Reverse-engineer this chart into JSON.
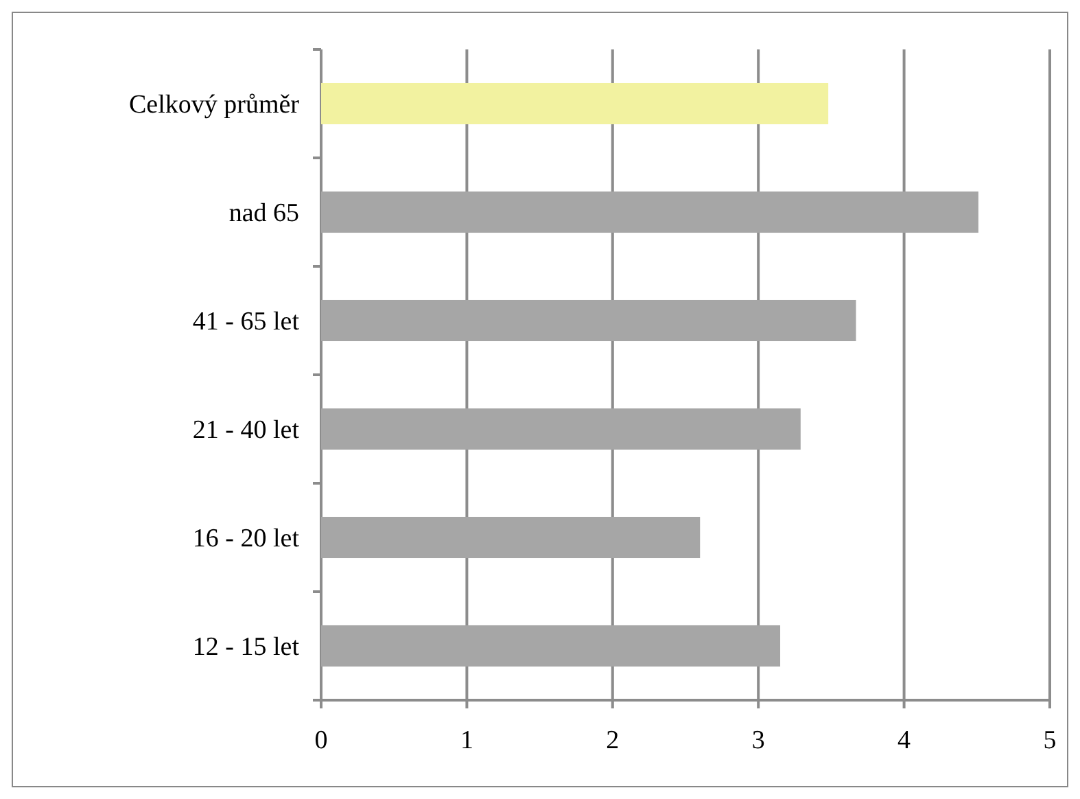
{
  "chart_data": {
    "type": "bar",
    "orientation": "horizontal",
    "categories": [
      "Celkový průměr",
      "nad 65",
      "41 - 65 let",
      "21 - 40 let",
      "16 - 20 let",
      "12 - 15 let"
    ],
    "values": [
      3.48,
      4.51,
      3.67,
      3.29,
      2.6,
      3.15
    ],
    "colors": [
      "#f2f2a0",
      "#a6a6a6",
      "#a6a6a6",
      "#a6a6a6",
      "#a6a6a6",
      "#a6a6a6"
    ],
    "xlim": [
      0,
      5
    ],
    "xticks": [
      0,
      1,
      2,
      3,
      4,
      5
    ],
    "grid": "x"
  }
}
